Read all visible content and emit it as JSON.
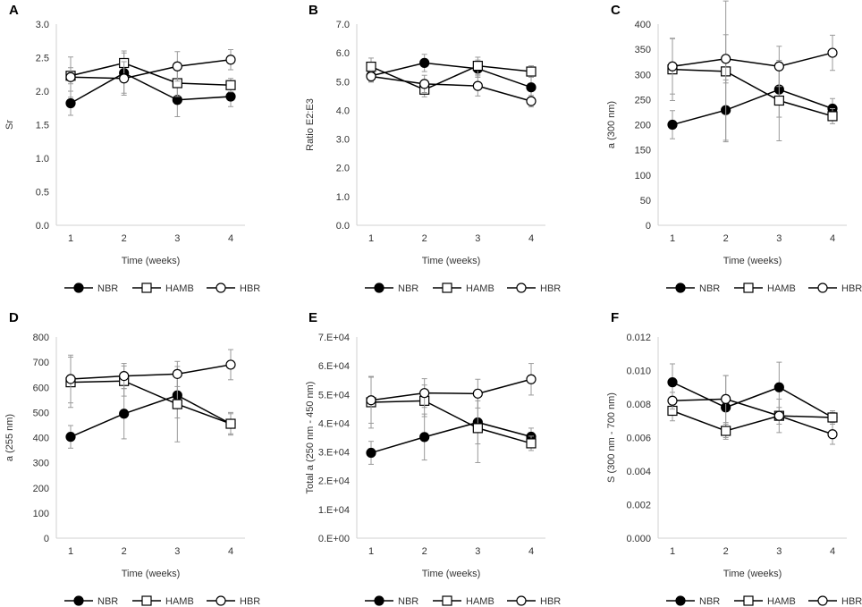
{
  "figure": {
    "colors": {
      "line": "#000000",
      "errorbar": "#9a9a9a",
      "axis": "#d0d0d0",
      "text": "#333333"
    }
  },
  "legend_entries": [
    {
      "name": "NBR",
      "marker": "filled-circle"
    },
    {
      "name": "HAMB",
      "marker": "open-square"
    },
    {
      "name": "HBR",
      "marker": "open-circle"
    }
  ],
  "chart_data": [
    {
      "panel": "A",
      "type": "line",
      "xlabel": "Time (weeks)",
      "ylabel": "Sr",
      "categories": [
        "1",
        "2",
        "3",
        "4"
      ],
      "ylim": [
        0,
        3
      ],
      "yticks": [
        "0.0",
        "0.5",
        "1.0",
        "1.5",
        "2.0",
        "2.5",
        "3.0"
      ],
      "series": [
        {
          "name": "NBR",
          "marker": "filled-circle",
          "values": [
            1.82,
            2.27,
            1.87,
            1.92
          ],
          "errors": [
            0.18,
            0.3,
            0.25,
            0.15
          ]
        },
        {
          "name": "HAMB",
          "marker": "open-square",
          "values": [
            2.23,
            2.42,
            2.12,
            2.09
          ],
          "errors": [
            0.12,
            0.18,
            0.2,
            0.1
          ]
        },
        {
          "name": "HBR",
          "marker": "open-circle",
          "values": [
            2.21,
            2.19,
            2.37,
            2.47
          ],
          "errors": [
            0.3,
            0.25,
            0.22,
            0.15
          ]
        }
      ]
    },
    {
      "panel": "B",
      "type": "line",
      "xlabel": "Time (weeks)",
      "ylabel": "Ratio E2:E3",
      "categories": [
        "1",
        "2",
        "3",
        "4"
      ],
      "ylim": [
        0,
        7
      ],
      "yticks": [
        "0.0",
        "1.0",
        "2.0",
        "3.0",
        "4.0",
        "5.0",
        "6.0",
        "7.0"
      ],
      "series": [
        {
          "name": "NBR",
          "marker": "filled-circle",
          "values": [
            5.2,
            5.65,
            5.45,
            4.8
          ],
          "errors": [
            0.2,
            0.3,
            0.3,
            0.4
          ]
        },
        {
          "name": "HAMB",
          "marker": "open-square",
          "values": [
            5.52,
            4.72,
            5.55,
            5.35
          ],
          "errors": [
            0.3,
            0.25,
            0.3,
            0.2
          ]
        },
        {
          "name": "HBR",
          "marker": "open-circle",
          "values": [
            5.18,
            4.92,
            4.85,
            4.32
          ],
          "errors": [
            0.2,
            0.3,
            0.35,
            0.2
          ]
        }
      ]
    },
    {
      "panel": "C",
      "type": "line",
      "xlabel": "Time (weeks)",
      "ylabel": "a (300 nm)",
      "categories": [
        "1",
        "2",
        "3",
        "4"
      ],
      "ylim": [
        0,
        400
      ],
      "yticks": [
        "0",
        "50",
        "100",
        "150",
        "200",
        "250",
        "300",
        "350",
        "400"
      ],
      "series": [
        {
          "name": "NBR",
          "marker": "filled-circle",
          "values": [
            200,
            229,
            270,
            232
          ],
          "errors": [
            28,
            60,
            55,
            20
          ]
        },
        {
          "name": "HAMB",
          "marker": "open-square",
          "values": [
            310,
            306,
            248,
            217
          ],
          "errors": [
            62,
            140,
            80,
            15
          ]
        },
        {
          "name": "HBR",
          "marker": "open-circle",
          "values": [
            316,
            331,
            316,
            343
          ],
          "errors": [
            55,
            48,
            40,
            35
          ]
        }
      ]
    },
    {
      "panel": "D",
      "type": "line",
      "xlabel": "Time (weeks)",
      "ylabel": "a (255 nm)",
      "categories": [
        "1",
        "2",
        "3",
        "4"
      ],
      "ylim": [
        0,
        800
      ],
      "yticks": [
        "0",
        "100",
        "200",
        "300",
        "400",
        "500",
        "600",
        "700",
        "800"
      ],
      "series": [
        {
          "name": "NBR",
          "marker": "filled-circle",
          "values": [
            403,
            495,
            568,
            455
          ],
          "errors": [
            45,
            100,
            90,
            40
          ]
        },
        {
          "name": "HAMB",
          "marker": "open-square",
          "values": [
            620,
            625,
            533,
            455
          ],
          "errors": [
            100,
            60,
            150,
            45
          ]
        },
        {
          "name": "HBR",
          "marker": "open-circle",
          "values": [
            633,
            645,
            653,
            690
          ],
          "errors": [
            95,
            50,
            50,
            60
          ]
        }
      ]
    },
    {
      "panel": "E",
      "type": "line",
      "xlabel": "Time (weeks)",
      "ylabel": "Total  a (250 nm - 450 nm)",
      "categories": [
        "1",
        "2",
        "3",
        "4"
      ],
      "ylim": [
        0,
        70000
      ],
      "yticks": [
        "0.E+00",
        "1.E+04",
        "2.E+04",
        "3.E+04",
        "4.E+04",
        "5.E+04",
        "6.E+04",
        "7.E+04"
      ],
      "series": [
        {
          "name": "NBR",
          "marker": "filled-circle",
          "values": [
            29700,
            35200,
            40300,
            35300
          ],
          "errors": [
            4000,
            8000,
            7500,
            3000
          ]
        },
        {
          "name": "HAMB",
          "marker": "open-square",
          "values": [
            47300,
            47800,
            38300,
            33000
          ],
          "errors": [
            9000,
            5500,
            12000,
            2500
          ]
        },
        {
          "name": "HBR",
          "marker": "open-circle",
          "values": [
            48000,
            50500,
            50300,
            55300
          ],
          "errors": [
            8000,
            5000,
            5000,
            5500
          ]
        }
      ]
    },
    {
      "panel": "F",
      "type": "line",
      "xlabel": "Time (weeks)",
      "ylabel": "S (300 nm - 700 nm)",
      "categories": [
        "1",
        "2",
        "3",
        "4"
      ],
      "ylim": [
        0,
        0.012
      ],
      "yticks": [
        "0.000",
        "0.002",
        "0.004",
        "0.006",
        "0.008",
        "0.010",
        "0.012"
      ],
      "series": [
        {
          "name": "NBR",
          "marker": "filled-circle",
          "values": [
            0.0093,
            0.0078,
            0.009,
            0.0072
          ],
          "errors": [
            0.0011,
            0.0019,
            0.0015,
            0.0004
          ]
        },
        {
          "name": "HAMB",
          "marker": "open-square",
          "values": [
            0.0076,
            0.0064,
            0.0073,
            0.0072
          ],
          "errors": [
            0.0006,
            0.0004,
            0.0005,
            0.0003
          ]
        },
        {
          "name": "HBR",
          "marker": "open-circle",
          "values": [
            0.0082,
            0.0083,
            0.0073,
            0.0062
          ],
          "errors": [
            0.0005,
            0.0014,
            0.001,
            0.0006
          ]
        }
      ]
    }
  ]
}
